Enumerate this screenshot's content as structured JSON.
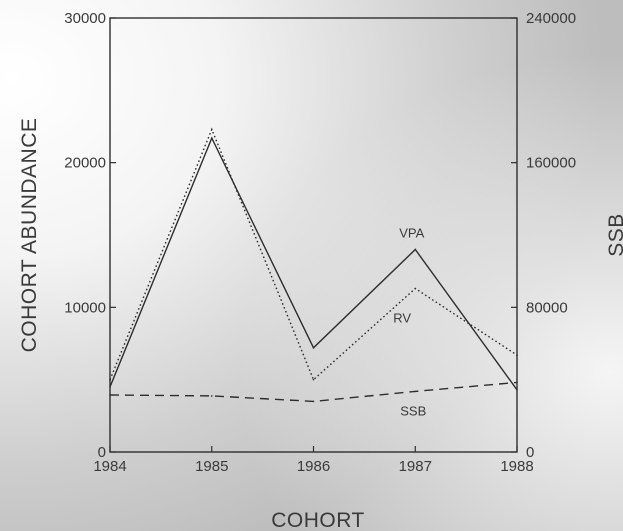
{
  "chart_data": {
    "type": "line",
    "title": "",
    "xlabel": "COHORT",
    "ylabel": "COHORT ABUNDANCE",
    "y2label": "SSB",
    "x": [
      1984,
      1985,
      1986,
      1987,
      1988
    ],
    "x_tick_labels": [
      "1984",
      "1985",
      "1986",
      "1987",
      "1988"
    ],
    "ylim": [
      0,
      30000
    ],
    "y_ticks": [
      0,
      10000,
      20000,
      30000
    ],
    "y_tick_labels": [
      "0",
      "10000",
      "20000",
      "30000"
    ],
    "y2lim": [
      0,
      240000
    ],
    "y2_ticks": [
      0,
      80000,
      160000,
      240000
    ],
    "y2_tick_labels": [
      "0",
      "80000",
      "160000",
      "240000"
    ],
    "grid": false,
    "series": [
      {
        "name": "VPA",
        "axis": "left",
        "style": "solid",
        "values": [
          4500,
          21700,
          7200,
          14000,
          4300
        ]
      },
      {
        "name": "RV",
        "axis": "left",
        "style": "dotted",
        "values": [
          5000,
          22300,
          5000,
          11300,
          6700
        ]
      },
      {
        "name": "SSB",
        "axis": "right",
        "style": "dashed",
        "values": [
          31500,
          31000,
          28000,
          33500,
          38500
        ]
      }
    ],
    "series_label_text": {
      "VPA": "VPA",
      "RV": "RV",
      "SSB": "SSB"
    }
  },
  "colors": {
    "background_gradient": [
      "#ffffff",
      "#bdbdbd"
    ],
    "line": "#2e2e2e",
    "text": "#3a3a3a"
  }
}
